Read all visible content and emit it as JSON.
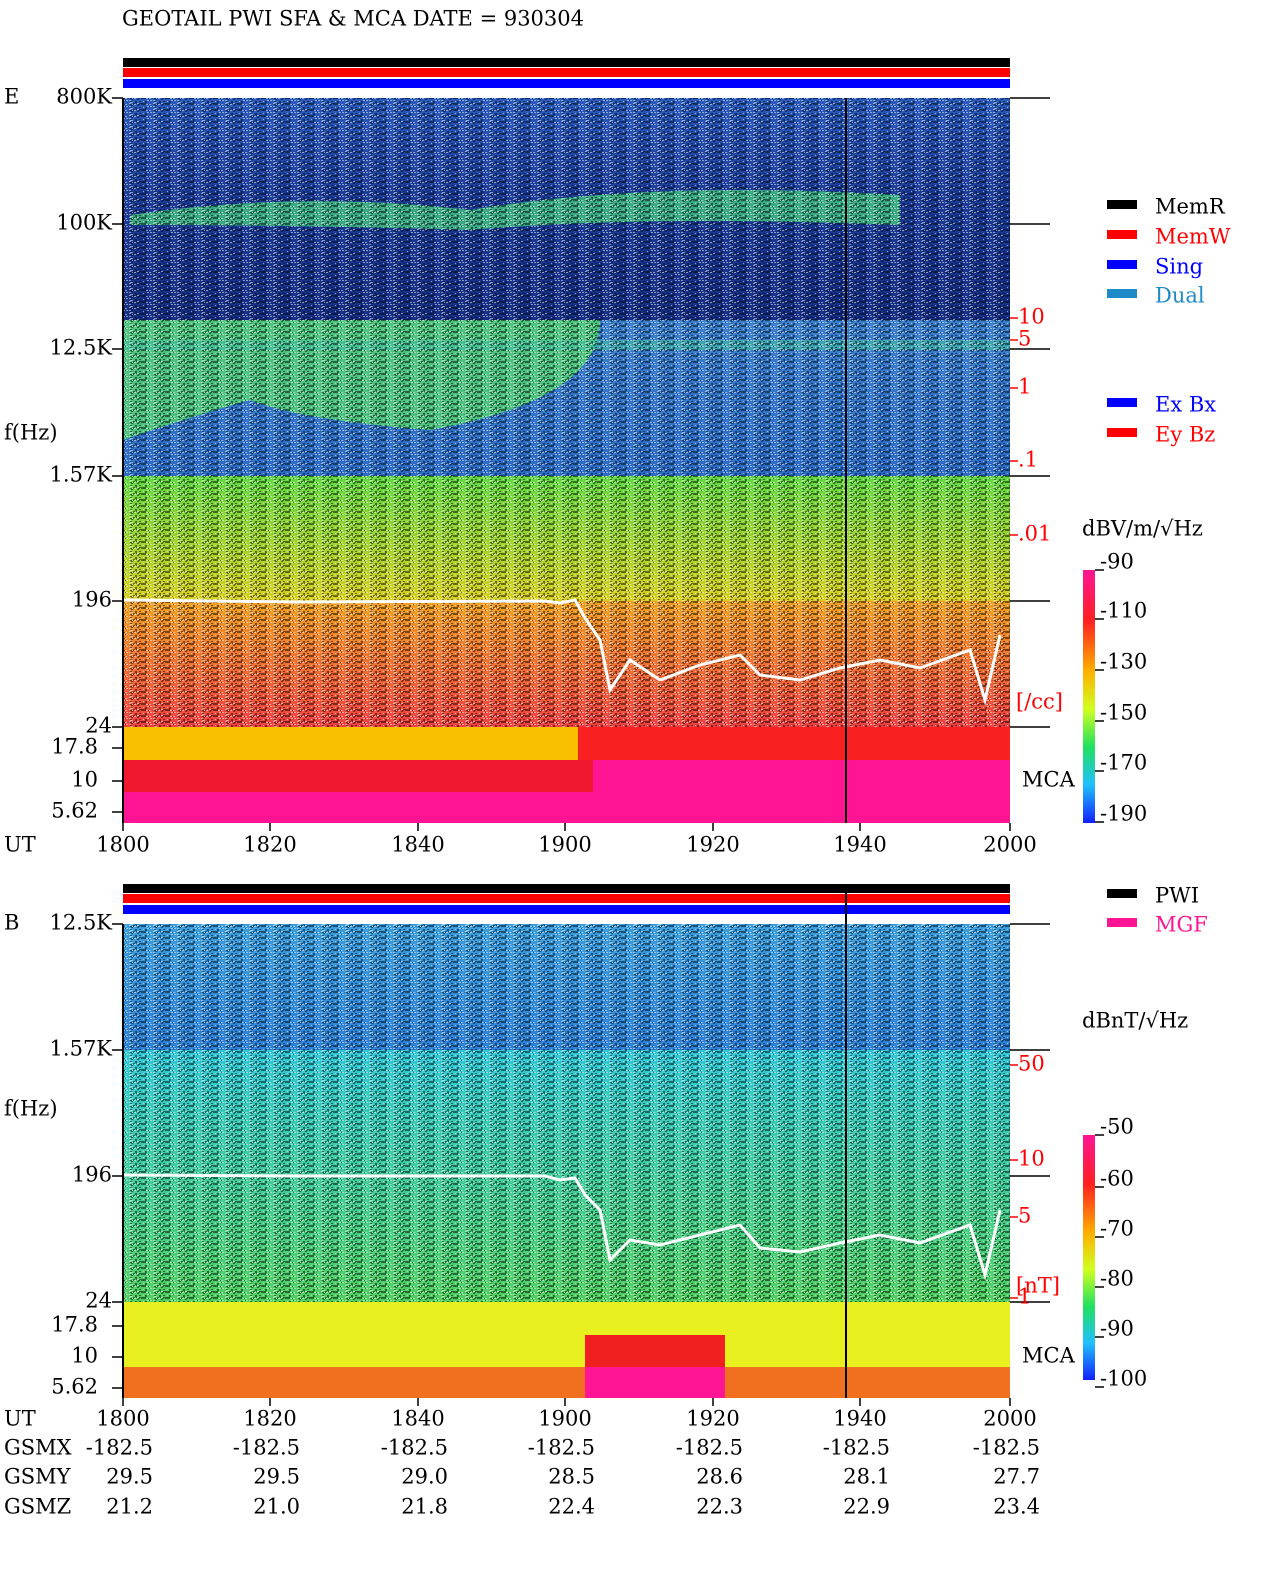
{
  "header": {
    "title": "GEOTAIL  PWI SFA & MCA   DATE = 930304"
  },
  "panels": [
    {
      "label": "E",
      "axis_label": "f(Hz)",
      "freq_ticks": [
        "800K",
        "100K",
        "12.5K",
        "1.57K",
        "196",
        "24"
      ],
      "mca_ticks": [
        "17.8",
        "10",
        "5.62"
      ],
      "mca_label": "MCA",
      "density_ticks": [
        "10",
        "5",
        "1",
        ".1",
        ".01"
      ],
      "density_unit": "[/cc]",
      "unit": "dBV/m/√Hz",
      "colorbar_ticks": [
        "-90",
        "-110",
        "-130",
        "-150",
        "-170",
        "-190"
      ],
      "time_label": "UT",
      "time_ticks": [
        "1800",
        "1820",
        "1840",
        "1900",
        "1920",
        "1940",
        "2000"
      ]
    },
    {
      "label": "B",
      "axis_label": "f(Hz)",
      "freq_ticks": [
        "12.5K",
        "1.57K",
        "196",
        "24"
      ],
      "mca_ticks": [
        "17.8",
        "10",
        "5.62"
      ],
      "mca_label": "MCA",
      "density_ticks": [
        "50",
        "10",
        "5",
        "1"
      ],
      "density_unit": "[nT]",
      "unit": "dBnT/√Hz",
      "colorbar_ticks": [
        "-50",
        "-60",
        "-70",
        "-80",
        "-90",
        "-100"
      ],
      "time_label": "UT",
      "time_ticks": [
        "1800",
        "1820",
        "1840",
        "1900",
        "1920",
        "1940",
        "2000"
      ]
    }
  ],
  "legends": [
    {
      "items": [
        {
          "name": "MemR",
          "color": "#000000"
        },
        {
          "name": "MemW",
          "color": "#ff0000"
        },
        {
          "name": "Sing",
          "color": "#0000ff"
        },
        {
          "name": "Dual",
          "color": "#1e8ac8"
        }
      ]
    },
    {
      "items": [
        {
          "name": "Ex Bx",
          "color": "#0000ff"
        },
        {
          "name": "Ey Bz",
          "color": "#ff0000"
        }
      ]
    },
    {
      "items": [
        {
          "name": "PWI",
          "color": "#000000"
        },
        {
          "name": "MGF",
          "color": "#ff1493"
        }
      ]
    }
  ],
  "orbit": {
    "rows": [
      {
        "label": "GSMX",
        "values": [
          "-182.5",
          "-182.5",
          "-182.5",
          "-182.5",
          "-182.5",
          "-182.5",
          "-182.5"
        ]
      },
      {
        "label": "GSMY",
        "values": [
          "29.5",
          "29.5",
          "29.0",
          "28.5",
          "28.6",
          "28.1",
          "27.7"
        ]
      },
      {
        "label": "GSMZ",
        "values": [
          "21.2",
          "21.0",
          "21.8",
          "22.4",
          "22.3",
          "22.9",
          "23.4"
        ]
      }
    ]
  }
}
